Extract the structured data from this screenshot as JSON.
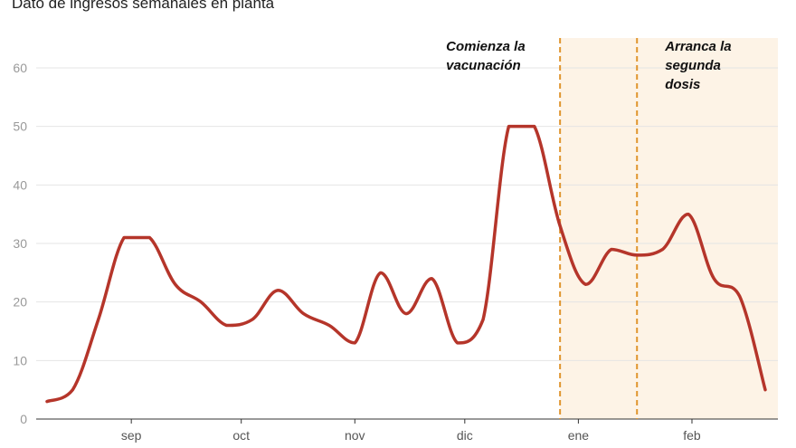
{
  "chart_data": {
    "type": "line",
    "title": "Dato de ingresos semanales en planta",
    "xlabel": "",
    "ylabel": "",
    "ylim": [
      0,
      60
    ],
    "yticks": [
      0,
      10,
      20,
      30,
      40,
      50,
      60
    ],
    "grid": true,
    "x": [
      "2020-08-09",
      "2020-08-16",
      "2020-08-23",
      "2020-08-30",
      "2020-09-06",
      "2020-09-13",
      "2020-09-20",
      "2020-09-27",
      "2020-10-04",
      "2020-10-11",
      "2020-10-18",
      "2020-10-25",
      "2020-11-01",
      "2020-11-08",
      "2020-11-15",
      "2020-11-22",
      "2020-11-29",
      "2020-12-06",
      "2020-12-13",
      "2020-12-20",
      "2020-12-27",
      "2021-01-03",
      "2021-01-10",
      "2021-01-17",
      "2021-01-24",
      "2021-01-31",
      "2021-02-07",
      "2021-02-14",
      "2021-02-21"
    ],
    "values": [
      3,
      5,
      17,
      31,
      31,
      23,
      20,
      16,
      17,
      22,
      18,
      16,
      13,
      25,
      18,
      24,
      13,
      17,
      50,
      50,
      33,
      23,
      29,
      28,
      29,
      35,
      24,
      21,
      5
    ],
    "xticks": [
      {
        "label": "sep",
        "date": "2020-09-01"
      },
      {
        "label": "oct",
        "date": "2020-10-01"
      },
      {
        "label": "nov",
        "date": "2020-11-01"
      },
      {
        "label": "dic",
        "date": "2020-12-01"
      },
      {
        "label": "ene",
        "date": "2021-01-01"
      },
      {
        "label": "feb",
        "date": "2021-02-01"
      }
    ],
    "line_color": "#b5352a",
    "shade_color": "#fdf3e6",
    "marker_color": "#e0952e",
    "annotations": [
      {
        "date": "2020-12-27",
        "lines": [
          "Comienza la",
          "vacunación"
        ],
        "side": "left"
      },
      {
        "date": "2021-01-17",
        "lines": [
          "Arranca la",
          "segunda",
          "dosis"
        ],
        "side": "right"
      }
    ]
  }
}
